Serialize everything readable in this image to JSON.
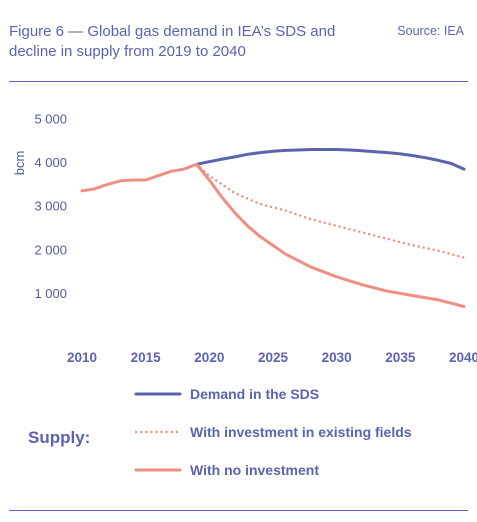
{
  "header": {
    "title": "Figure 6 — Global gas demand in IEA’s SDS and decline in supply from 2019 to 2040",
    "source": "Source: IEA"
  },
  "legend": {
    "group_label": "Supply:"
  },
  "colors": {
    "demand": "#5b63b0",
    "supply": "#ee8f82",
    "text": "#5b63b0",
    "axis": "#555a9e"
  },
  "chart_data": {
    "type": "line",
    "title": "Global gas demand in IEA’s SDS and decline in supply from 2019 to 2040",
    "xlabel": "",
    "ylabel": "bcm",
    "xlim": [
      2010,
      2040
    ],
    "ylim": [
      0,
      5000
    ],
    "x_ticks": [
      "2010",
      "2015",
      "2020",
      "2025",
      "2030",
      "2035",
      "2040"
    ],
    "x_tick_values": [
      2010,
      2015,
      2020,
      2025,
      2030,
      2035,
      2040
    ],
    "y_ticks": [
      "1 000",
      "2 000",
      "3 000",
      "4 000",
      "5 000"
    ],
    "y_tick_values": [
      1000,
      2000,
      3000,
      4000,
      5000
    ],
    "grid": false,
    "series": [
      {
        "name": "Demand in the SDS",
        "style": "solid",
        "color": "#5b63b0",
        "x": [
          2019,
          2020,
          2021,
          2022,
          2023,
          2024,
          2025,
          2026,
          2027,
          2028,
          2029,
          2030,
          2031,
          2032,
          2033,
          2034,
          2035,
          2036,
          2037,
          2038,
          2039,
          2040
        ],
        "y": [
          3960,
          4020,
          4080,
          4130,
          4190,
          4230,
          4260,
          4280,
          4290,
          4300,
          4300,
          4300,
          4290,
          4270,
          4250,
          4230,
          4200,
          4160,
          4110,
          4050,
          3980,
          3850
        ]
      },
      {
        "name": "With investment in existing fields",
        "style": "dotted",
        "color": "#ee8f82",
        "x": [
          2019,
          2020,
          2022,
          2024,
          2026,
          2028,
          2030,
          2032,
          2034,
          2036,
          2038,
          2040
        ],
        "y": [
          3960,
          3700,
          3300,
          3050,
          2900,
          2700,
          2550,
          2400,
          2250,
          2100,
          1980,
          1820
        ]
      },
      {
        "name": "With no investment",
        "style": "solid",
        "color": "#ee8f82",
        "x": [
          2010,
          2011,
          2012,
          2013,
          2014,
          2015,
          2016,
          2017,
          2018,
          2019,
          2020,
          2021,
          2022,
          2023,
          2024,
          2025,
          2026,
          2028,
          2030,
          2032,
          2034,
          2036,
          2038,
          2040
        ],
        "y": [
          3350,
          3400,
          3500,
          3580,
          3600,
          3600,
          3700,
          3800,
          3850,
          3960,
          3600,
          3200,
          2850,
          2550,
          2300,
          2100,
          1900,
          1600,
          1380,
          1200,
          1050,
          950,
          850,
          700
        ]
      }
    ]
  }
}
